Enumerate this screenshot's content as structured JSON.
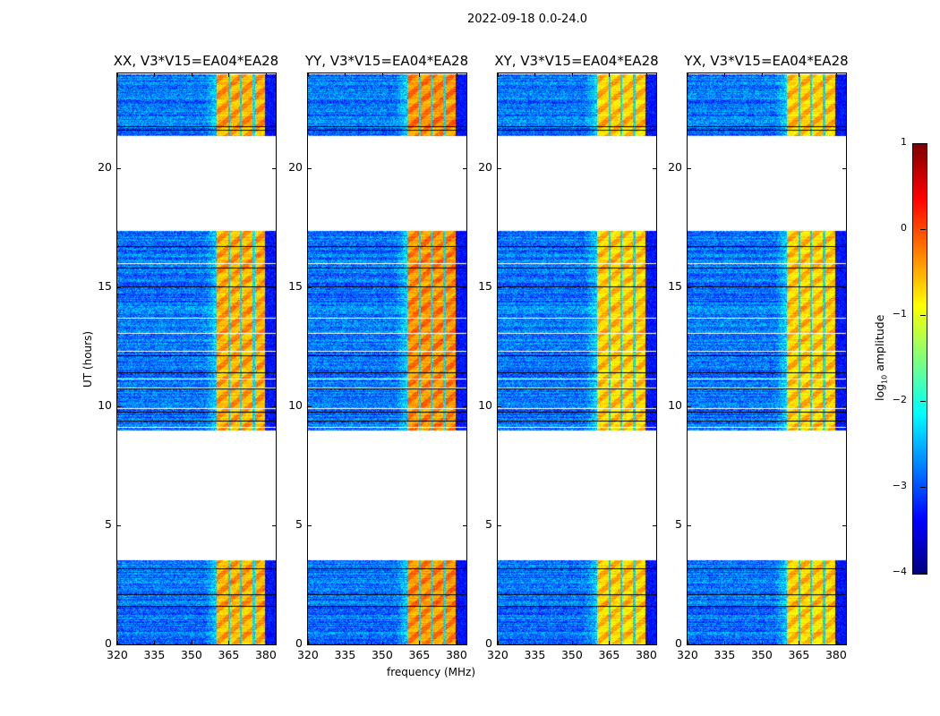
{
  "figure": {
    "suptitle": "2022-09-18 0.0-24.0",
    "xlabel": "frequency (MHz)",
    "ylabel": "UT (hours)",
    "colorbar_label_prefix": "log",
    "colorbar_label_sub": "10",
    "colorbar_label_suffix": " amplitude"
  },
  "chart_data": {
    "type": "heatmap",
    "colormap": "jet",
    "panels": [
      {
        "title": "XX, V3*V15=EA04*EA28",
        "band_level": -0.6
      },
      {
        "title": "YY, V3*V15=EA04*EA28",
        "band_level": -0.45
      },
      {
        "title": "XY, V3*V15=EA04*EA28",
        "band_level": -0.75
      },
      {
        "title": "YX, V3*V15=EA04*EA28",
        "band_level": -0.75
      }
    ],
    "xlim": [
      320,
      384
    ],
    "ylim": [
      0,
      24
    ],
    "xticks": [
      320,
      335,
      350,
      365,
      380
    ],
    "yticks": [
      0,
      5,
      10,
      15,
      20
    ],
    "data_time_ranges_hours": [
      [
        0,
        3.55
      ],
      [
        9.0,
        17.4
      ],
      [
        21.4,
        24
      ]
    ],
    "background_level": -2.8,
    "bright_band_mhz": [
      360,
      379.6
    ],
    "band_notches_mhz": [
      365.1,
      369.8,
      375.0
    ],
    "colorbar": {
      "range": [
        -4,
        1
      ],
      "ticks": [
        1,
        0,
        -1,
        -2,
        -3,
        -4
      ]
    }
  }
}
